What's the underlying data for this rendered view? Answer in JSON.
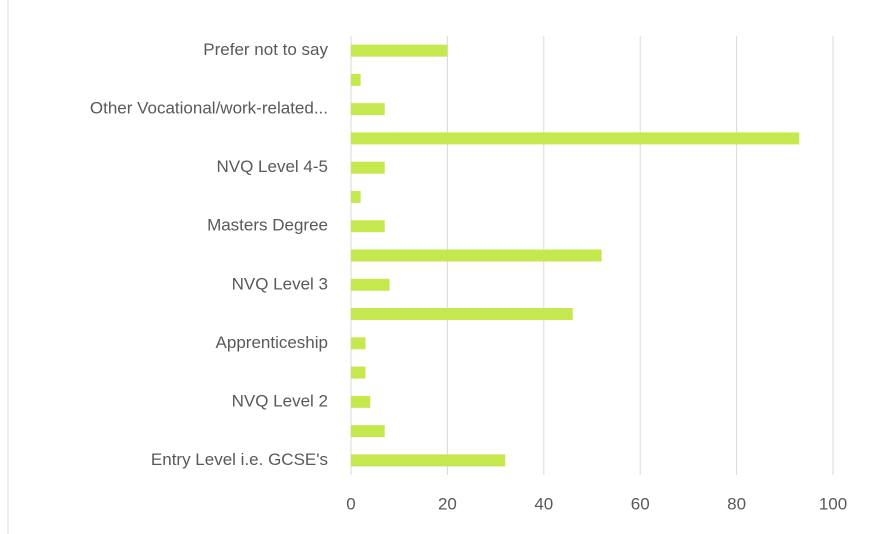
{
  "chart_data": {
    "type": "bar",
    "orientation": "horizontal",
    "categories": [
      "Prefer not to say",
      null,
      "Other Vocational/work-related...",
      null,
      "NVQ Level 4-5",
      null,
      "Masters Degree",
      null,
      "NVQ Level 3",
      null,
      "Apprenticeship",
      null,
      "NVQ Level 2",
      null,
      "Entry Level i.e. GCSE's"
    ],
    "values": [
      20,
      2,
      7,
      93,
      7,
      2,
      7,
      52,
      8,
      46,
      3,
      3,
      4,
      7,
      32
    ],
    "color": "#c5e84f",
    "xlim": [
      0,
      100
    ],
    "xticks": [
      0,
      20,
      40,
      60,
      80,
      100
    ],
    "grid": true
  }
}
